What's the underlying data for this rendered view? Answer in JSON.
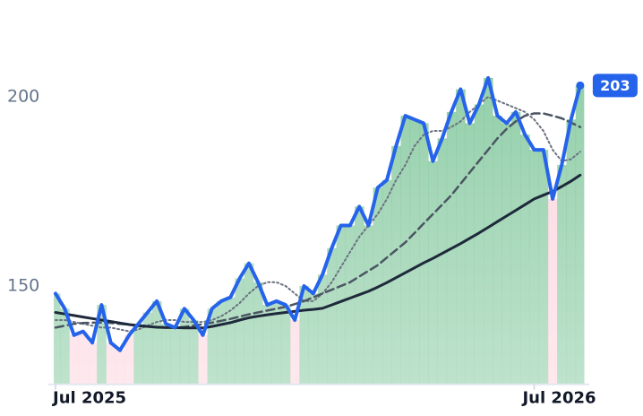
{
  "chart_data": {
    "type": "line",
    "x": [
      0,
      1,
      2,
      3,
      4,
      5,
      6,
      7,
      8,
      9,
      10,
      11,
      12,
      13,
      14,
      15,
      16,
      17,
      18,
      19,
      20,
      21,
      22,
      23,
      24,
      25,
      26,
      27,
      28,
      29,
      30,
      31,
      32,
      33,
      34,
      35,
      36,
      37,
      38,
      39,
      40,
      41,
      42,
      43,
      44,
      45,
      46,
      47,
      48,
      49,
      50,
      51,
      52,
      53,
      54,
      55,
      56,
      57
    ],
    "series": [
      {
        "color": "#2563eb",
        "style": "solid",
        "width": 4,
        "values": [
          148,
          144,
          137,
          138,
          135,
          145,
          135,
          133,
          137,
          140,
          143,
          146,
          140,
          139,
          144,
          141,
          137,
          144,
          146,
          147,
          152,
          156,
          151,
          145,
          146,
          145,
          141,
          150,
          148,
          153,
          160,
          166,
          166,
          171,
          166,
          176,
          178,
          187,
          195,
          194,
          193,
          183,
          189,
          196,
          202,
          193,
          198,
          205,
          195,
          193,
          196,
          190,
          186,
          186,
          173,
          182,
          194,
          203
        ]
      },
      {
        "color": "#1e293b",
        "style": "solid",
        "width": 3,
        "values": [
          143,
          142.6,
          142.2,
          141.8,
          141.4,
          141,
          140.6,
          140.2,
          139.8,
          139.5,
          139.3,
          139.1,
          139,
          139,
          138.9,
          138.9,
          138.9,
          139.3,
          139.8,
          140.3,
          141,
          141.6,
          142,
          142.4,
          142.7,
          143,
          143.3,
          143.6,
          143.8,
          144.1,
          145,
          145.9,
          146.8,
          147.7,
          148.6,
          149.7,
          150.9,
          152.2,
          153.5,
          154.8,
          156.1,
          157.3,
          158.6,
          159.9,
          161.2,
          162.6,
          164,
          165.5,
          167,
          168.5,
          170,
          171.5,
          173,
          174,
          175,
          176.3,
          177.7,
          179.3
        ]
      },
      {
        "color": "#4b5563",
        "style": "dashed",
        "width": 2.5,
        "values": [
          139,
          139.5,
          140,
          140.2,
          140.3,
          140.3,
          140.2,
          140,
          139.8,
          139.6,
          139.4,
          139.2,
          139.1,
          139,
          139.2,
          139.5,
          139.9,
          140.3,
          140.8,
          141.3,
          141.9,
          142.5,
          143,
          143.5,
          144,
          144.5,
          145.2,
          146,
          147,
          148,
          149,
          150,
          151,
          152.5,
          154,
          155.5,
          157.5,
          159.5,
          161.5,
          164,
          166.5,
          169,
          171.5,
          174,
          177,
          180,
          183,
          186,
          189,
          191.5,
          193.5,
          195,
          195.6,
          195.6,
          195,
          194.3,
          193.2,
          192
        ]
      },
      {
        "color": "#6b7280",
        "style": "dotted",
        "width": 2,
        "values": [
          141,
          141,
          140.5,
          140,
          139.5,
          139,
          139,
          138.5,
          138,
          138.5,
          139.5,
          140.5,
          141,
          141,
          140.5,
          140.5,
          140.5,
          141,
          142,
          143.5,
          145.5,
          148,
          150,
          151,
          151,
          150,
          148,
          146,
          146,
          148,
          151,
          155,
          159,
          163,
          166,
          169,
          173,
          178,
          182,
          187,
          190,
          191,
          191,
          192,
          193.5,
          196,
          198,
          200,
          199,
          198,
          197,
          196,
          194,
          191,
          186,
          183,
          183.5,
          185.5
        ]
      }
    ],
    "up_color": "#4caf72",
    "down_color": "#f8a5b8",
    "xlim": [
      0,
      57.4
    ],
    "xticks": [
      {
        "value": 0,
        "label": "Jul 2025"
      },
      {
        "value": 52,
        "label": "Jul 2026"
      }
    ],
    "ylim": [
      124,
      224
    ],
    "yticks": [
      150,
      200
    ]
  }
}
